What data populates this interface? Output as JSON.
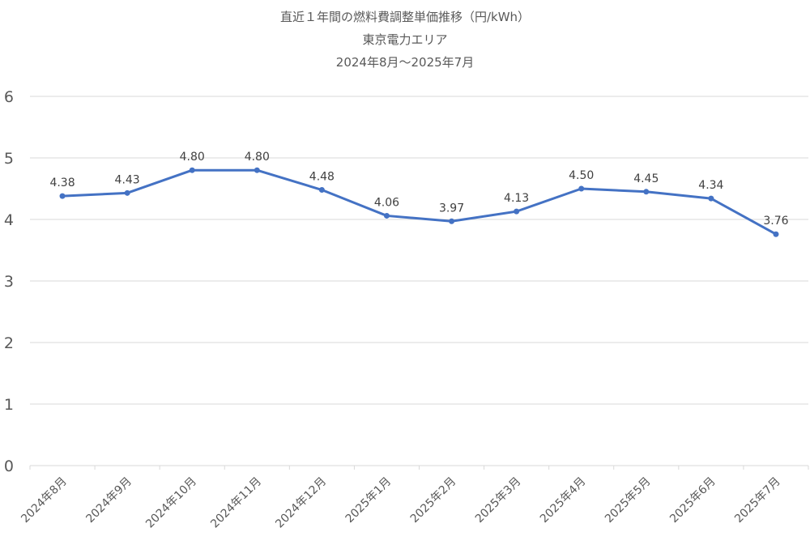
{
  "chart_data": {
    "type": "line",
    "title": "直近１年間の燃料費調整単価推移（円/kWh）",
    "subtitle": "東京電力エリア",
    "subtitle2": "2024年8月～2025年7月",
    "categories": [
      "2024年8月",
      "2024年9月",
      "2024年10月",
      "2024年11月",
      "2024年12月",
      "2025年1月",
      "2025年2月",
      "2025年3月",
      "2025年4月",
      "2025年5月",
      "2025年6月",
      "2025年7月"
    ],
    "series": [
      {
        "values": [
          4.38,
          4.43,
          4.8,
          4.8,
          4.48,
          4.06,
          3.97,
          4.13,
          4.5,
          4.45,
          4.34,
          3.76
        ],
        "labels": [
          "4.38",
          "4.43",
          "4.80",
          "4.80",
          "4.48",
          "4.06",
          "3.97",
          "4.13",
          "4.50",
          "4.45",
          "4.34",
          "3.76"
        ]
      }
    ],
    "ylim": [
      0,
      6
    ],
    "yticks": [
      "0",
      "1",
      "2",
      "3",
      "4",
      "5",
      "6"
    ],
    "grid": true,
    "colors": {
      "line": "#4472C4",
      "grid": "#D9D9D9",
      "text": "#595959"
    }
  }
}
